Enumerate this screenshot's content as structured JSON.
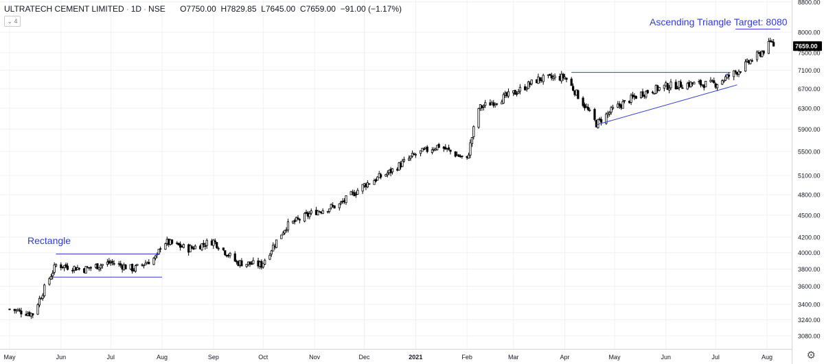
{
  "header": {
    "symbol": "ULTRATECH CEMENT LIMITED",
    "interval": "1D",
    "exchange": "NSE",
    "open": "O7750.00",
    "high": "H7829.85",
    "low": "L7645.00",
    "close": "C7659.00",
    "change": "−91.00 (−1.17%)",
    "collapse_badge": "4"
  },
  "annotations": {
    "rectangle_label": "Rectangle",
    "triangle_label": "Ascending Triangle Target: 8080"
  },
  "last_price_label": "7659.00",
  "colors": {
    "candle": "#000000",
    "annotation": "#2f3adb",
    "grid": "#eef0f3",
    "price_tag_bg": "#000000",
    "price_tag_text": "#ffffff"
  },
  "chart_data": {
    "type": "candlestick",
    "title": "ULTRATECH CEMENT LIMITED · 1D · NSE",
    "y_axis_ticks": [
      "3080.00",
      "3240.00",
      "3400.00",
      "3600.00",
      "3800.00",
      "4000.00",
      "4200.00",
      "4500.00",
      "4800.00",
      "5100.00",
      "5500.00",
      "5900.00",
      "6300.00",
      "6700.00",
      "7100.00",
      "7500.00",
      "8000.00",
      "8800.00"
    ],
    "x_axis_labels": [
      "May",
      "Jun",
      "Jul",
      "Aug",
      "Sep",
      "Oct",
      "Nov",
      "Dec",
      "2021",
      "Feb",
      "Mar",
      "Apr",
      "May",
      "Jun",
      "Jul",
      "Aug"
    ],
    "scale": "log",
    "approx_close_path": [
      {
        "date": "2020-05-01",
        "close": 3350
      },
      {
        "date": "2020-05-15",
        "close": 3300
      },
      {
        "date": "2020-05-29",
        "close": 3850
      },
      {
        "date": "2020-06-15",
        "close": 3800
      },
      {
        "date": "2020-07-01",
        "close": 3880
      },
      {
        "date": "2020-07-15",
        "close": 3800
      },
      {
        "date": "2020-07-29",
        "close": 3950
      },
      {
        "date": "2020-08-01",
        "close": 4150
      },
      {
        "date": "2020-08-17",
        "close": 4050
      },
      {
        "date": "2020-09-01",
        "close": 4150
      },
      {
        "date": "2020-09-15",
        "close": 3880
      },
      {
        "date": "2020-09-30",
        "close": 3850
      },
      {
        "date": "2020-10-15",
        "close": 4350
      },
      {
        "date": "2020-11-01",
        "close": 4550
      },
      {
        "date": "2020-11-16",
        "close": 4650
      },
      {
        "date": "2020-12-01",
        "close": 4950
      },
      {
        "date": "2020-12-16",
        "close": 5150
      },
      {
        "date": "2021-01-01",
        "close": 5450
      },
      {
        "date": "2021-01-15",
        "close": 5600
      },
      {
        "date": "2021-02-01",
        "close": 5350
      },
      {
        "date": "2021-02-08",
        "close": 6300
      },
      {
        "date": "2021-02-22",
        "close": 6500
      },
      {
        "date": "2021-03-01",
        "close": 6600
      },
      {
        "date": "2021-03-16",
        "close": 6900
      },
      {
        "date": "2021-04-01",
        "close": 6950
      },
      {
        "date": "2021-04-20",
        "close": 6000
      },
      {
        "date": "2021-05-01",
        "close": 6300
      },
      {
        "date": "2021-05-17",
        "close": 6600
      },
      {
        "date": "2021-06-01",
        "close": 6750
      },
      {
        "date": "2021-06-15",
        "close": 6800
      },
      {
        "date": "2021-07-01",
        "close": 6800
      },
      {
        "date": "2021-07-15",
        "close": 7100
      },
      {
        "date": "2021-07-30",
        "close": 7550
      },
      {
        "date": "2021-08-04",
        "close": 7780
      },
      {
        "date": "2021-08-05",
        "close": 7659
      }
    ],
    "trendlines": [
      {
        "name": "Rectangle top",
        "value": 3985
      },
      {
        "name": "Rectangle bottom",
        "value": 3705
      },
      {
        "name": "Triangle resistance",
        "value": 7050
      },
      {
        "name": "Triangle support",
        "from": 5980,
        "to": 6780
      },
      {
        "name": "Target",
        "value": 8080
      }
    ],
    "last": {
      "open": 7750.0,
      "high": 7829.85,
      "low": 7645.0,
      "close": 7659.0,
      "change": -91.0,
      "change_pct": -1.17
    }
  }
}
